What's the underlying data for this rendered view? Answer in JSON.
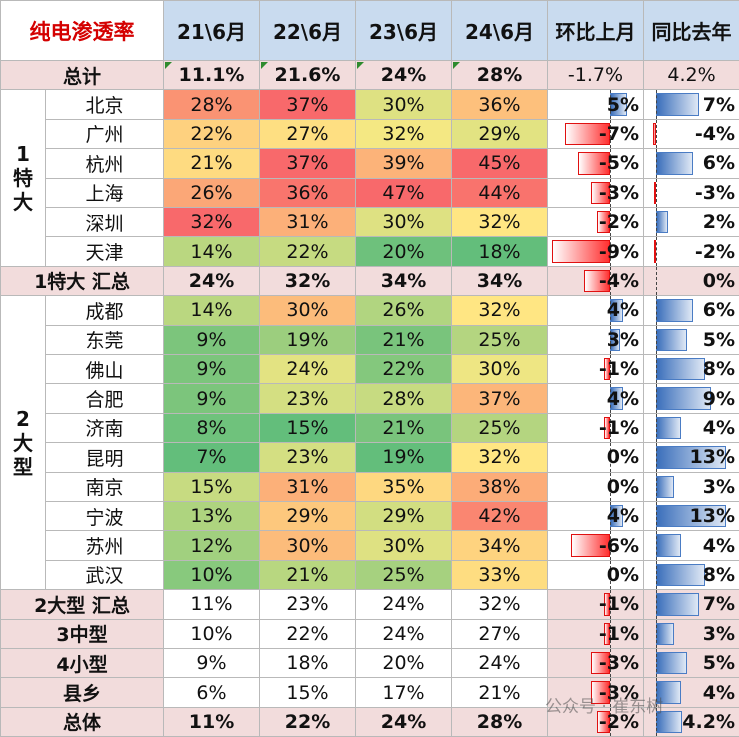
{
  "title": "纯电渗透率",
  "columns": [
    "21\\6月",
    "22\\6月",
    "23\\6月",
    "24\\6月",
    "环比上月",
    "同比去年"
  ],
  "colors": {
    "header_bg": "#c9dbef",
    "pink_row_bg": "#f2dcdc",
    "title_text": "#d40000",
    "heat_low": "#63be7b",
    "heat_mid": "#ffeb84",
    "heat_high": "#f8696b",
    "bar_positive": "#4a7cc4",
    "bar_negative": "#ff3030"
  },
  "chart_data": {
    "type": "table",
    "groups": [
      {
        "name": "1特大",
        "cities": [
          "北京",
          "广州",
          "杭州",
          "上海",
          "深圳",
          "天津"
        ]
      },
      {
        "name": "2大型",
        "cities": [
          "成都",
          "东莞",
          "佛山",
          "合肥",
          "济南",
          "昆明",
          "南京",
          "宁波",
          "苏州",
          "武汉"
        ]
      }
    ],
    "rows": [
      {
        "label": "总计",
        "kind": "summary",
        "values": [
          "11.1%",
          "21.6%",
          "24%",
          "28%"
        ],
        "mom": "-1.7%",
        "yoy": "4.2%"
      },
      {
        "label": "北京",
        "kind": "city",
        "group": "1特大",
        "values": [
          "28%",
          "37%",
          "30%",
          "36%"
        ],
        "mom": "5%",
        "yoy": "7%"
      },
      {
        "label": "广州",
        "kind": "city",
        "group": "1特大",
        "values": [
          "22%",
          "27%",
          "32%",
          "29%"
        ],
        "mom": "-7%",
        "yoy": "-4%"
      },
      {
        "label": "杭州",
        "kind": "city",
        "group": "1特大",
        "values": [
          "21%",
          "37%",
          "39%",
          "45%"
        ],
        "mom": "-5%",
        "yoy": "6%"
      },
      {
        "label": "上海",
        "kind": "city",
        "group": "1特大",
        "values": [
          "26%",
          "36%",
          "47%",
          "44%"
        ],
        "mom": "-3%",
        "yoy": "-3%"
      },
      {
        "label": "深圳",
        "kind": "city",
        "group": "1特大",
        "values": [
          "32%",
          "31%",
          "30%",
          "32%"
        ],
        "mom": "-2%",
        "yoy": "2%"
      },
      {
        "label": "天津",
        "kind": "city",
        "group": "1特大",
        "values": [
          "14%",
          "22%",
          "20%",
          "18%"
        ],
        "mom": "-9%",
        "yoy": "-2%"
      },
      {
        "label": "1特大 汇总",
        "kind": "subtotal",
        "values": [
          "24%",
          "32%",
          "34%",
          "34%"
        ],
        "mom": "-4%",
        "yoy": "0%"
      },
      {
        "label": "成都",
        "kind": "city",
        "group": "2大型",
        "values": [
          "14%",
          "30%",
          "26%",
          "32%"
        ],
        "mom": "4%",
        "yoy": "6%"
      },
      {
        "label": "东莞",
        "kind": "city",
        "group": "2大型",
        "values": [
          "9%",
          "19%",
          "21%",
          "25%"
        ],
        "mom": "3%",
        "yoy": "5%"
      },
      {
        "label": "佛山",
        "kind": "city",
        "group": "2大型",
        "values": [
          "9%",
          "24%",
          "22%",
          "30%"
        ],
        "mom": "-1%",
        "yoy": "8%"
      },
      {
        "label": "合肥",
        "kind": "city",
        "group": "2大型",
        "values": [
          "9%",
          "23%",
          "28%",
          "37%"
        ],
        "mom": "4%",
        "yoy": "9%"
      },
      {
        "label": "济南",
        "kind": "city",
        "group": "2大型",
        "values": [
          "8%",
          "15%",
          "21%",
          "25%"
        ],
        "mom": "-1%",
        "yoy": "4%"
      },
      {
        "label": "昆明",
        "kind": "city",
        "group": "2大型",
        "values": [
          "7%",
          "23%",
          "19%",
          "32%"
        ],
        "mom": "0%",
        "yoy": "13%"
      },
      {
        "label": "南京",
        "kind": "city",
        "group": "2大型",
        "values": [
          "15%",
          "31%",
          "35%",
          "38%"
        ],
        "mom": "0%",
        "yoy": "3%"
      },
      {
        "label": "宁波",
        "kind": "city",
        "group": "2大型",
        "values": [
          "13%",
          "29%",
          "29%",
          "42%"
        ],
        "mom": "4%",
        "yoy": "13%"
      },
      {
        "label": "苏州",
        "kind": "city",
        "group": "2大型",
        "values": [
          "12%",
          "30%",
          "30%",
          "34%"
        ],
        "mom": "-6%",
        "yoy": "4%"
      },
      {
        "label": "武汉",
        "kind": "city",
        "group": "2大型",
        "values": [
          "10%",
          "21%",
          "25%",
          "33%"
        ],
        "mom": "0%",
        "yoy": "8%"
      },
      {
        "label": "2大型 汇总",
        "kind": "plain",
        "values": [
          "11%",
          "23%",
          "24%",
          "32%"
        ],
        "mom": "-1%",
        "yoy": "7%"
      },
      {
        "label": "3中型",
        "kind": "plain",
        "values": [
          "10%",
          "22%",
          "24%",
          "27%"
        ],
        "mom": "-1%",
        "yoy": "3%"
      },
      {
        "label": "4小型",
        "kind": "plain",
        "values": [
          "9%",
          "18%",
          "20%",
          "24%"
        ],
        "mom": "-3%",
        "yoy": "5%"
      },
      {
        "label": "县乡",
        "kind": "plain",
        "values": [
          "6%",
          "15%",
          "17%",
          "21%"
        ],
        "mom": "-3%",
        "yoy": "4%"
      },
      {
        "label": "总体",
        "kind": "total",
        "values": [
          "11%",
          "22%",
          "24%",
          "28%"
        ],
        "mom": "-2%",
        "yoy": "4.2%"
      }
    ]
  },
  "watermark": "公众号 · 崔东树"
}
